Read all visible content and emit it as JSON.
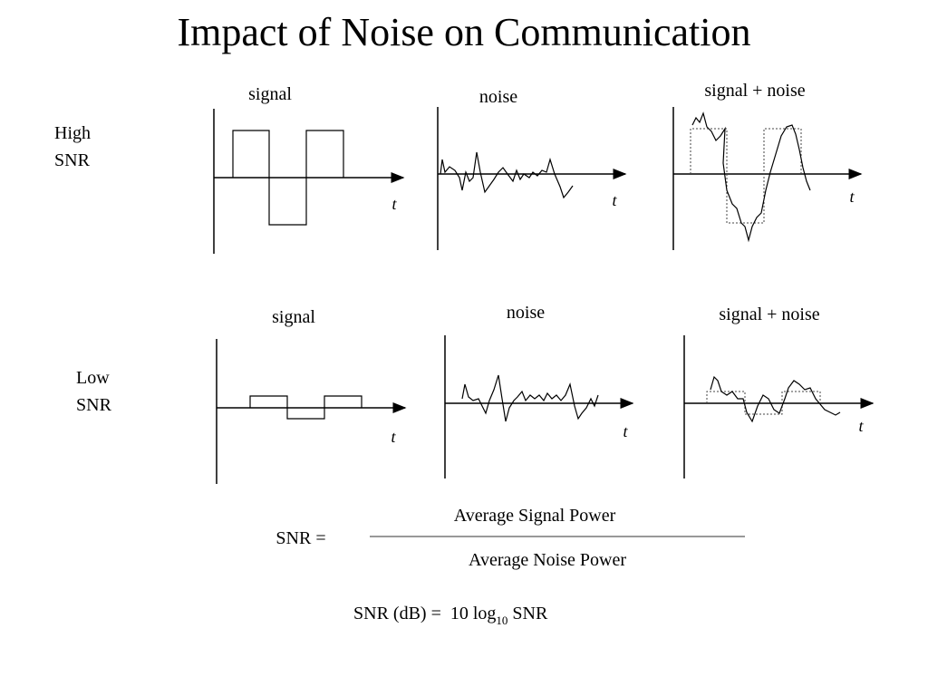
{
  "title": "Impact of Noise on Communication",
  "rows": [
    {
      "label": [
        "High",
        "SNR"
      ],
      "panels": [
        {
          "label": "signal",
          "axis": "t"
        },
        {
          "label": "noise",
          "axis": "t"
        },
        {
          "label": "signal + noise",
          "axis": "t"
        }
      ]
    },
    {
      "label": [
        "Low",
        "SNR"
      ],
      "panels": [
        {
          "label": "signal",
          "axis": "t"
        },
        {
          "label": "noise",
          "axis": "t"
        },
        {
          "label": "signal + noise",
          "axis": "t"
        }
      ]
    }
  ],
  "formula": {
    "lhs": "SNR =",
    "numerator": "Average Signal Power",
    "denominator": "Average Noise Power"
  },
  "db_formula": {
    "lhs": "SNR (dB) =  10 log",
    "base": "10",
    "rhs": " SNR"
  }
}
